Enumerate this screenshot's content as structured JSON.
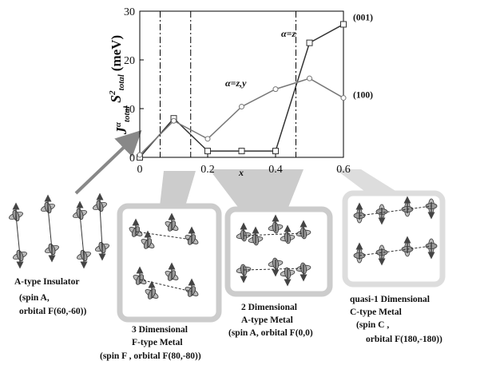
{
  "chart_data": {
    "type": "line",
    "ylabel": [
      "J",
      "α",
      "total",
      "S",
      "2",
      "total",
      "(meV)"
    ],
    "xlabel": "x",
    "x": [
      0,
      0.1,
      0.2,
      0.3,
      0.4,
      0.5,
      0.6
    ],
    "series": [
      {
        "name": "(001)",
        "color": "#333333",
        "marker": "square",
        "values": [
          0,
          8,
          1.3,
          1.3,
          1.3,
          23.5,
          27.3
        ]
      },
      {
        "name": "(100)",
        "color": "#777777",
        "marker": "circle",
        "values": [
          0.5,
          7.5,
          3.8,
          10.4,
          14,
          16.2,
          12.2
        ]
      }
    ],
    "annotations": [
      "α=z",
      "α=z,y"
    ],
    "vlines": [
      0.06,
      0.15,
      0.46
    ],
    "xlim": [
      0,
      0.6
    ],
    "xticks": [
      0,
      0.2,
      0.4,
      0.6
    ],
    "ylim": [
      0,
      30
    ],
    "yticks": [
      0,
      10,
      20,
      30
    ]
  },
  "panels": [
    {
      "lines": [
        "A-type Insulator",
        "(spin A,",
        "orbital F(60,-60))"
      ]
    },
    {
      "lines": [
        "3 Dimensional",
        "F-type Metal",
        "(spin F , orbital F(80,-80))"
      ]
    },
    {
      "lines": [
        "2 Dimensional",
        "A-type Metal",
        "(spin A, orbital F(0,0)"
      ]
    },
    {
      "lines": [
        "quasi-1 Dimensional",
        "C-type Metal",
        "(spin C ,",
        "orbital F(180,-180))"
      ]
    }
  ]
}
